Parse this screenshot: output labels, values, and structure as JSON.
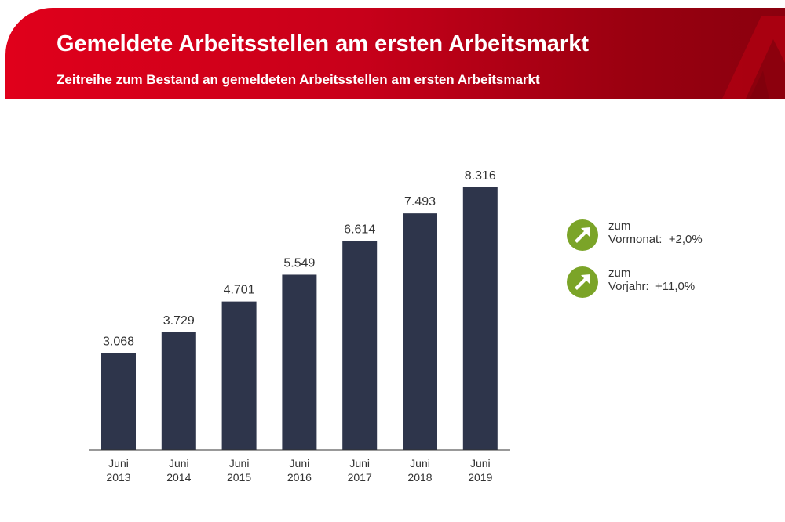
{
  "header": {
    "title": "Gemeldete Arbeitsstellen am ersten Arbeitsmarkt",
    "subtitle": "Zeitreihe zum Bestand an gemeldeten Arbeitsstellen am ersten Arbeitsmarkt"
  },
  "colors": {
    "header_red": "#e0001b",
    "bar": "#2e354b",
    "trend_green": "#7ba428"
  },
  "chart_data": {
    "type": "bar",
    "categories": [
      [
        "Juni",
        "2013"
      ],
      [
        "Juni",
        "2014"
      ],
      [
        "Juni",
        "2015"
      ],
      [
        "Juni",
        "2016"
      ],
      [
        "Juni",
        "2017"
      ],
      [
        "Juni",
        "2018"
      ],
      [
        "Juni",
        "2019"
      ]
    ],
    "values": [
      3068,
      3729,
      4701,
      5549,
      6614,
      7493,
      8316
    ],
    "data_labels": [
      "3.068",
      "3.729",
      "4.701",
      "5.549",
      "6.614",
      "7.493",
      "8.316"
    ],
    "ylim": [
      0,
      8316
    ],
    "grid": false
  },
  "trends": [
    {
      "icon": "arrow-up-right-icon",
      "line1": "zum",
      "line2": "Vormonat:",
      "value": "+2,0%"
    },
    {
      "icon": "arrow-up-right-icon",
      "line1": "zum",
      "line2": "Vorjahr:",
      "value": "+11,0%"
    }
  ]
}
